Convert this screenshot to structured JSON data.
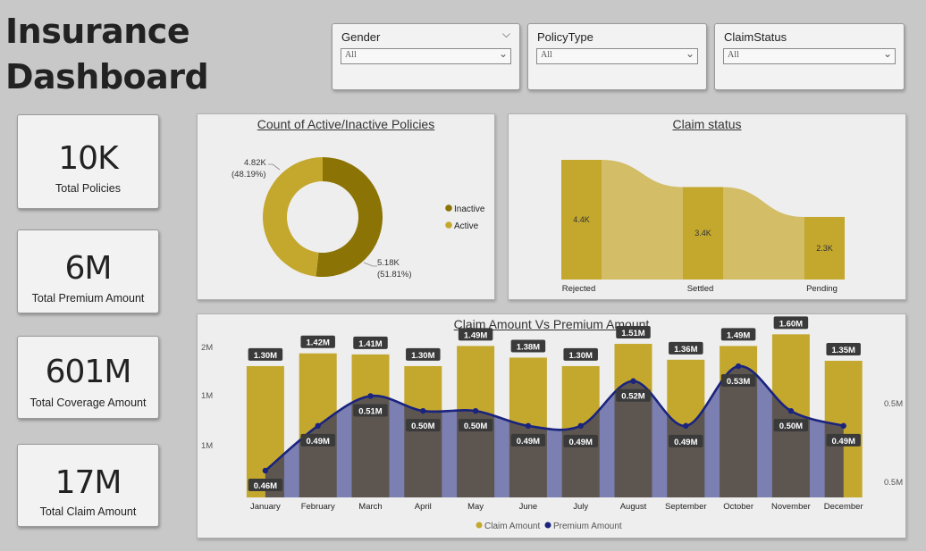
{
  "header": {
    "title_line1": "Insurance",
    "title_line2": "Dashboard"
  },
  "slicers": [
    {
      "label": "Gender",
      "value": "All"
    },
    {
      "label": "PolicyType",
      "value": "All"
    },
    {
      "label": "ClaimStatus",
      "value": "All"
    }
  ],
  "kpis": [
    {
      "value": "10K",
      "caption": "Total Policies"
    },
    {
      "value": "6M",
      "caption": "Total Premium Amount"
    },
    {
      "value": "601M",
      "caption": "Total Coverage Amount"
    },
    {
      "value": "17M",
      "caption": "Total Claim Amount"
    }
  ],
  "colors": {
    "gold": "#c4a82e",
    "dark_olive": "#8b7405",
    "navy": "#1a237e",
    "area": "#6b6fa8",
    "ribbon": "#d3bd66"
  },
  "chart_data": [
    {
      "type": "pie",
      "title": "Count of Active/Inactive Policies",
      "legend": "right",
      "slices": [
        {
          "name": "Inactive",
          "value": 5.18,
          "label": "5.18K",
          "pct": "(51.81%)"
        },
        {
          "name": "Active",
          "value": 4.82,
          "label": "4.82K",
          "pct": "(48.19%)"
        }
      ]
    },
    {
      "type": "bar",
      "title": "Claim status",
      "categories": [
        "Rejected",
        "Settled",
        "Pending"
      ],
      "values": [
        4.4,
        3.4,
        2.3
      ],
      "labels": [
        "4.4K",
        "3.4K",
        "2.3K"
      ]
    },
    {
      "type": "bar",
      "title": "Claim Amount Vs Premium Amount",
      "categories": [
        "January",
        "February",
        "March",
        "April",
        "May",
        "June",
        "July",
        "August",
        "September",
        "October",
        "November",
        "December"
      ],
      "series": [
        {
          "name": "Claim Amount",
          "type": "bar",
          "values": [
            1.3,
            1.42,
            1.41,
            1.3,
            1.49,
            1.38,
            1.3,
            1.51,
            1.36,
            1.49,
            1.6,
            1.35
          ],
          "labels": [
            "1.30M",
            "1.42M",
            "1.41M",
            "1.30M",
            "1.49M",
            "1.38M",
            "1.30M",
            "1.51M",
            "1.36M",
            "1.49M",
            "1.60M",
            "1.35M"
          ]
        },
        {
          "name": "Premium Amount",
          "type": "line",
          "values": [
            0.46,
            0.49,
            0.51,
            0.5,
            0.5,
            0.49,
            0.49,
            0.52,
            0.49,
            0.53,
            0.5,
            0.49
          ],
          "labels": [
            "0.46M",
            "0.49M",
            "0.51M",
            "0.50M",
            "0.50M",
            "0.49M",
            "0.49M",
            "0.52M",
            "0.49M",
            "0.53M",
            "0.50M",
            "0.49M"
          ]
        }
      ],
      "y_left_ticks": [
        "2M",
        "1M",
        "1M"
      ],
      "y_right_ticks": [
        "0.5M",
        "0.5M"
      ],
      "legend": "bottom"
    }
  ]
}
